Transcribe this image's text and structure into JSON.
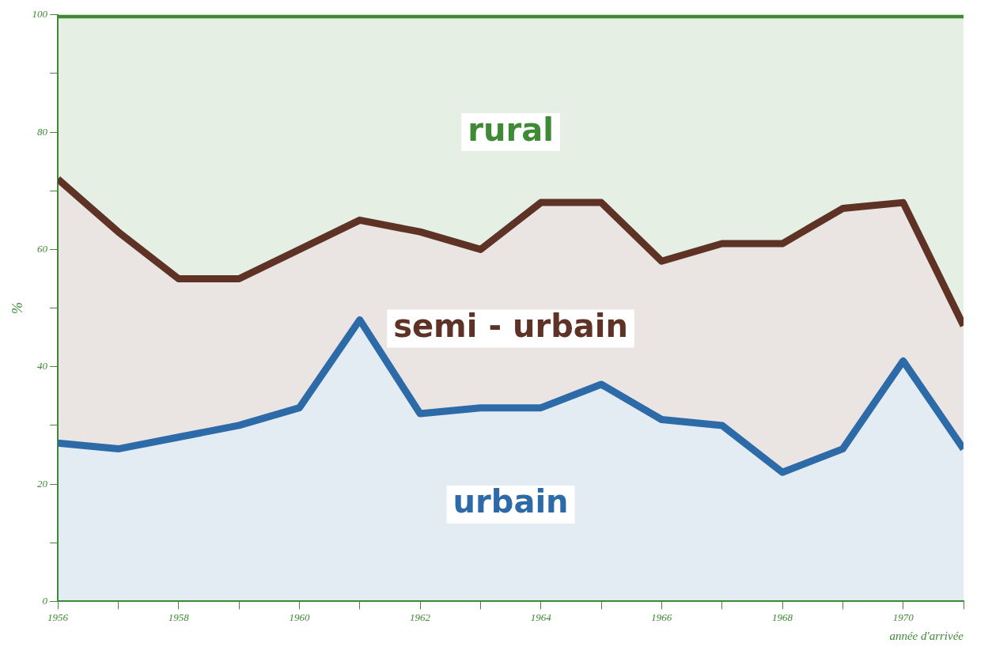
{
  "chart_data": {
    "type": "area",
    "stacked": true,
    "xlabel": "année d'arrivée",
    "ylabel": "%",
    "x": [
      1956,
      1957,
      1958,
      1959,
      1960,
      1961,
      1962,
      1963,
      1964,
      1965,
      1966,
      1967,
      1968,
      1969,
      1970,
      1971
    ],
    "xlim": [
      1956,
      1971
    ],
    "xticks": [
      1956,
      {
        "value": 1957,
        "label": null
      },
      1958,
      {
        "value": 1959,
        "label": null
      },
      1960,
      {
        "value": 1961,
        "label": null
      },
      1962,
      {
        "value": 1963,
        "label": null
      },
      1964,
      {
        "value": 1965,
        "label": null
      },
      1966,
      {
        "value": 1967,
        "label": null
      },
      1968,
      {
        "value": 1969,
        "label": null
      },
      1970,
      {
        "value": 1971,
        "label": null
      }
    ],
    "ylim": [
      0,
      100
    ],
    "yticks": [
      0,
      {
        "value": 10,
        "label": null
      },
      20,
      {
        "value": 30,
        "label": null
      },
      40,
      {
        "value": 50,
        "label": null
      },
      60,
      {
        "value": 70,
        "label": null
      },
      80,
      {
        "value": 90,
        "label": null
      },
      100
    ],
    "series": [
      {
        "name": "urbain",
        "color": "#2d6aa8",
        "values": [
          27,
          26,
          28,
          30,
          33,
          48,
          32,
          33,
          33,
          37,
          31,
          30,
          22,
          26,
          41,
          26
        ]
      },
      {
        "name": "semi - urbain",
        "color": "#5e3326",
        "values": [
          45,
          37,
          27,
          25,
          27,
          17,
          31,
          27,
          35,
          31,
          27,
          31,
          39,
          41,
          27,
          21
        ]
      },
      {
        "name": "rural",
        "color": "#3f8a35",
        "values": [
          28,
          37,
          45,
          45,
          40,
          35,
          37,
          40,
          32,
          32,
          42,
          39,
          39,
          33,
          32,
          53
        ]
      }
    ],
    "grid": false,
    "legend": false,
    "marker": "none"
  }
}
